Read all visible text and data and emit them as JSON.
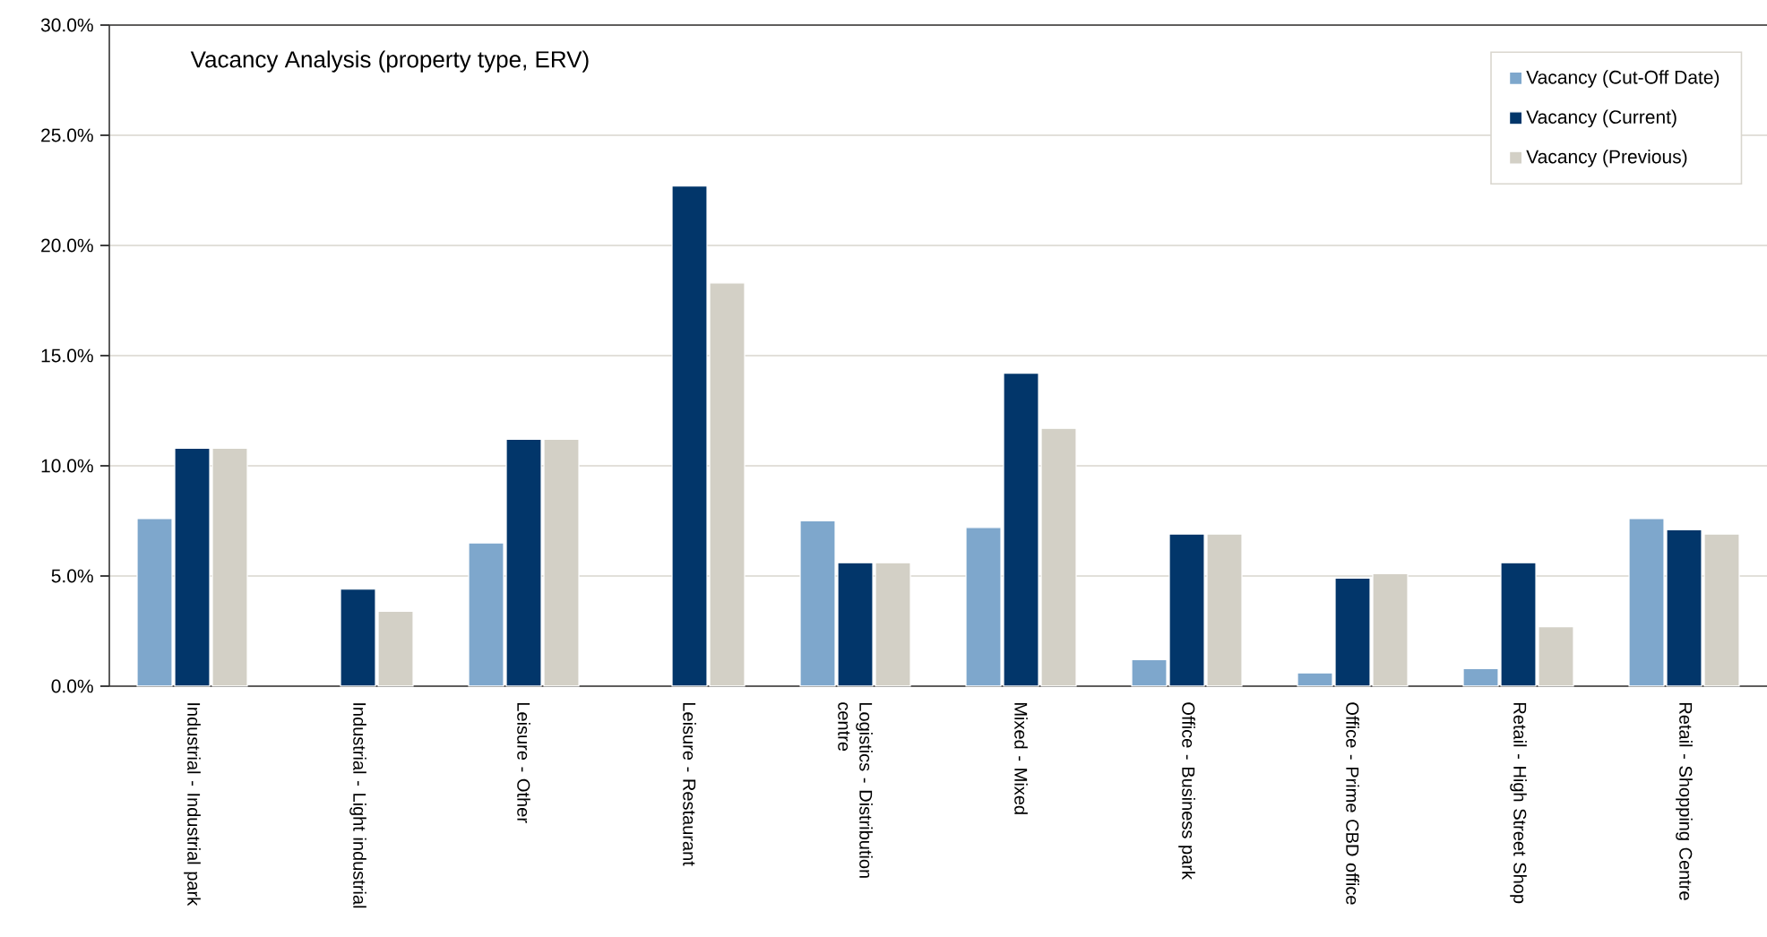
{
  "chart_data": {
    "type": "bar",
    "title": "Vacancy Analysis (property type, ERV)",
    "categories": [
      "Industrial - Industrial park",
      "Industrial - Light industrial",
      "Leisure - Other",
      "Leisure - Restaurant",
      "Logistics - Distribution centre",
      "Mixed - Mixed",
      "Office - Business park",
      "Office - Prime CBD office",
      "Retail - High Street Shop",
      "Retail - Shopping Centre"
    ],
    "series": [
      {
        "name": "Vacancy (Cut-Off Date)",
        "color": "#7ea7cc",
        "values": [
          7.6,
          null,
          6.5,
          null,
          7.5,
          7.2,
          1.2,
          0.6,
          0.8,
          7.6
        ]
      },
      {
        "name": "Vacancy (Current)",
        "color": "#02366a",
        "values": [
          10.8,
          4.4,
          11.2,
          22.7,
          5.6,
          14.2,
          6.9,
          4.9,
          5.6,
          7.1
        ]
      },
      {
        "name": "Vacancy (Previous)",
        "color": "#d3d0c6",
        "values": [
          10.8,
          3.4,
          11.2,
          18.3,
          5.6,
          11.7,
          6.9,
          5.1,
          2.7,
          6.9
        ]
      }
    ],
    "ylim": [
      0,
      30
    ],
    "yticks": [
      {
        "value": 0,
        "label": "0.0%"
      },
      {
        "value": 5,
        "label": "5.0%"
      },
      {
        "value": 10,
        "label": "10.0%"
      },
      {
        "value": 15,
        "label": "15.0%"
      },
      {
        "value": 20,
        "label": "20.0%"
      },
      {
        "value": 25,
        "label": "25.0%"
      },
      {
        "value": 30,
        "label": "30.0%"
      }
    ],
    "grid": "y",
    "legend": "top right"
  }
}
